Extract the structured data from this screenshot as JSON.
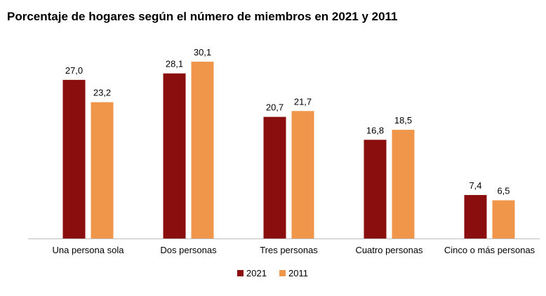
{
  "chart_data": {
    "type": "bar",
    "title": "Porcentaje de hogares según el número de miembros en 2021 y 2011",
    "categories": [
      "Una persona sola",
      "Dos personas",
      "Tres personas",
      "Cuatro personas",
      "Cinco o más personas"
    ],
    "series": [
      {
        "name": "2021",
        "values": [
          27.0,
          28.1,
          20.7,
          16.8,
          7.4
        ],
        "labels": [
          "27,0",
          "28,1",
          "20,7",
          "16,8",
          "7,4"
        ],
        "color": "#8B0E0E"
      },
      {
        "name": "2011",
        "values": [
          23.2,
          30.1,
          21.7,
          18.5,
          6.5
        ],
        "labels": [
          "23,2",
          "30,1",
          "21,7",
          "18,5",
          "6,5"
        ],
        "color": "#F0964B"
      }
    ],
    "ylim": [
      0,
      32
    ],
    "grid": false,
    "legend": "bottom-center"
  }
}
